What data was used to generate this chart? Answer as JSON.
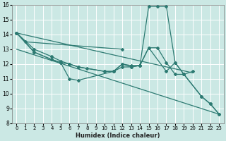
{
  "xlabel": "Humidex (Indice chaleur)",
  "background_color": "#cbe8e4",
  "grid_color": "#ffffff",
  "line_color": "#2d7a72",
  "ylim": [
    8,
    16
  ],
  "xlim": [
    -0.5,
    23.5
  ],
  "yticks": [
    8,
    9,
    10,
    11,
    12,
    13,
    14,
    15,
    16
  ],
  "xtick_labels": [
    "0",
    "1",
    "2",
    "3",
    "4",
    "5",
    "6",
    "7",
    "8",
    "9",
    "10",
    "11",
    "12",
    "13",
    "14",
    "15",
    "16",
    "17",
    "18",
    "19",
    "20",
    "21",
    "22",
    "23"
  ],
  "line1_x": [
    0,
    1,
    12
  ],
  "line1_y": [
    14.1,
    13.5,
    13.0
  ],
  "line2_x": [
    0,
    2,
    4,
    5,
    6,
    7,
    11,
    12,
    13,
    14,
    15,
    17,
    18,
    19,
    20
  ],
  "line2_y": [
    14.1,
    12.8,
    12.3,
    12.1,
    11.0,
    10.9,
    11.5,
    11.8,
    11.8,
    11.9,
    13.1,
    11.5,
    12.1,
    11.3,
    11.5
  ],
  "line3_x": [
    0,
    2,
    4,
    5,
    6,
    7,
    8,
    10,
    11,
    12,
    13,
    14,
    15,
    16,
    17,
    18,
    19,
    21,
    22,
    23
  ],
  "line3_y": [
    14.1,
    13.0,
    12.5,
    12.2,
    12.0,
    11.8,
    11.7,
    11.5,
    11.5,
    12.0,
    11.9,
    11.9,
    15.9,
    15.9,
    15.9,
    12.1,
    11.3,
    9.8,
    9.3,
    8.6
  ],
  "line4_x": [
    0,
    2,
    4,
    5,
    6,
    7,
    10,
    11,
    12,
    13,
    14,
    15,
    16,
    17,
    18,
    19,
    21,
    22,
    23
  ],
  "line4_y": [
    14.1,
    12.8,
    12.3,
    12.1,
    12.0,
    11.8,
    11.5,
    11.5,
    12.0,
    11.8,
    11.9,
    13.1,
    13.1,
    12.1,
    11.3,
    11.3,
    9.8,
    9.3,
    8.6
  ],
  "marker_style": "D",
  "marker_size": 2.0,
  "line_width": 0.9
}
